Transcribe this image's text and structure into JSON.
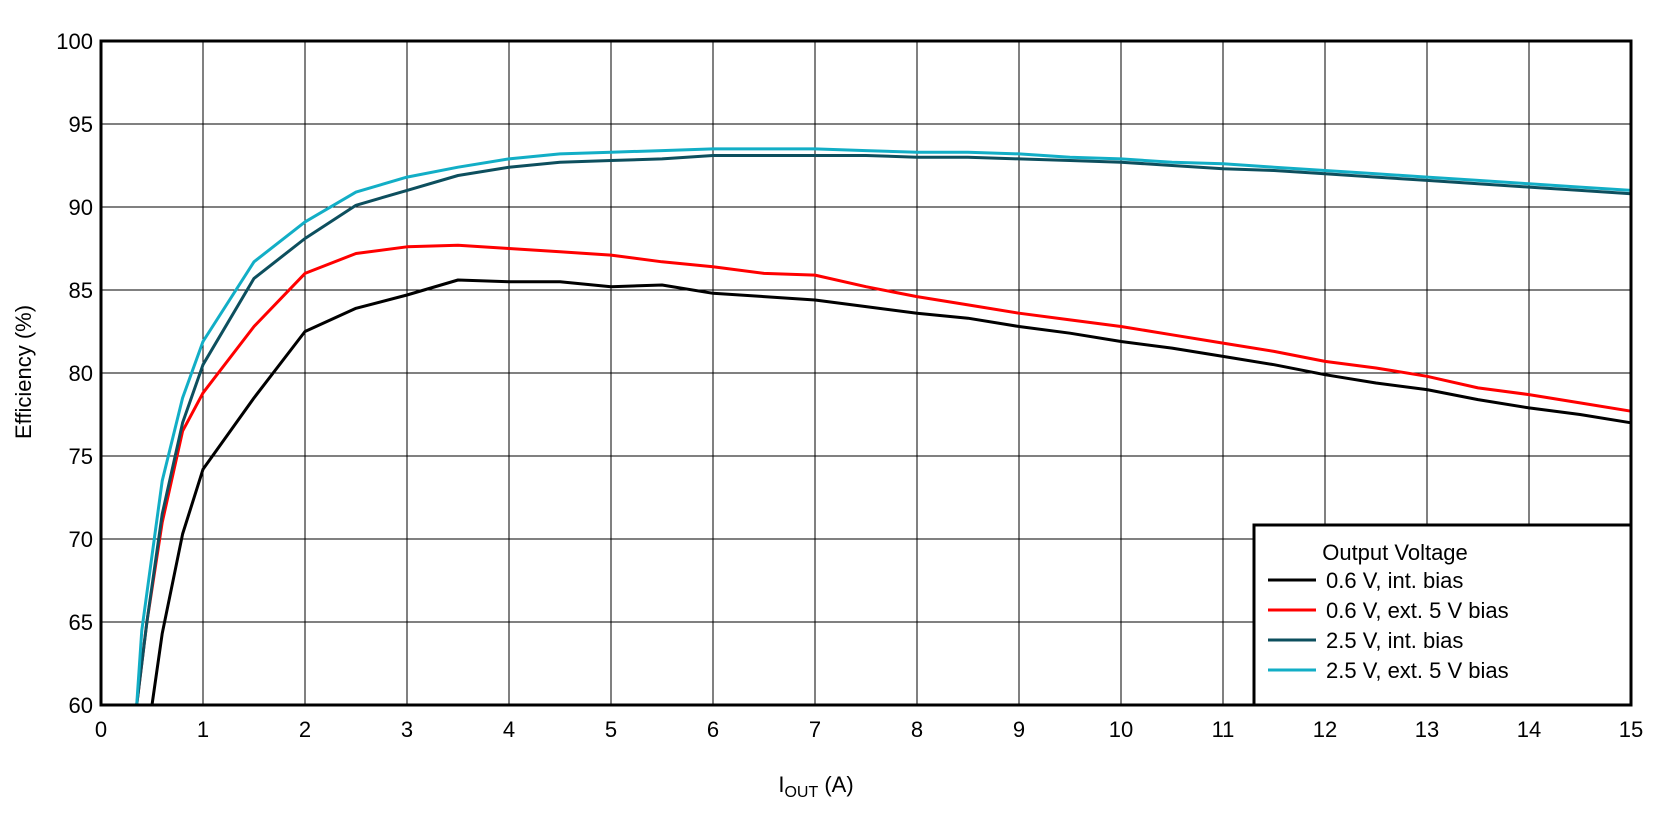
{
  "chart_data": {
    "type": "line",
    "xlabel_main": "I",
    "xlabel_sub": "OUT",
    "xlabel_unit": " (A)",
    "ylabel": "Efficiency (%)",
    "xlim": [
      0,
      15
    ],
    "ylim": [
      60,
      100
    ],
    "xticks": [
      0,
      1,
      2,
      3,
      4,
      5,
      6,
      7,
      8,
      9,
      10,
      11,
      12,
      13,
      14,
      15
    ],
    "yticks": [
      60,
      65,
      70,
      75,
      80,
      85,
      90,
      95,
      100
    ],
    "grid": true,
    "legend": {
      "title": "Output Voltage",
      "placement": "bottom-right"
    },
    "series": [
      {
        "name": "0.6 V, int. bias",
        "color": "#000000",
        "points": [
          [
            0.5,
            60
          ],
          [
            0.6,
            64.3
          ],
          [
            0.8,
            70.3
          ],
          [
            1,
            74.2
          ],
          [
            1.5,
            78.5
          ],
          [
            2,
            82.5
          ],
          [
            2.5,
            83.9
          ],
          [
            3,
            84.7
          ],
          [
            3.5,
            85.6
          ],
          [
            4,
            85.5
          ],
          [
            4.5,
            85.5
          ],
          [
            5,
            85.2
          ],
          [
            5.5,
            85.3
          ],
          [
            6,
            84.8
          ],
          [
            6.5,
            84.6
          ],
          [
            7,
            84.4
          ],
          [
            7.5,
            84.0
          ],
          [
            8,
            83.6
          ],
          [
            8.5,
            83.3
          ],
          [
            9,
            82.8
          ],
          [
            9.5,
            82.4
          ],
          [
            10,
            81.9
          ],
          [
            10.5,
            81.5
          ],
          [
            11,
            81.0
          ],
          [
            11.5,
            80.5
          ],
          [
            12,
            79.9
          ],
          [
            12.5,
            79.4
          ],
          [
            13,
            79.0
          ],
          [
            13.5,
            78.4
          ],
          [
            14,
            77.9
          ],
          [
            14.5,
            77.5
          ],
          [
            15,
            77.0
          ]
        ]
      },
      {
        "name": "0.6 V, ext. 5 V bias",
        "color": "#ff0000",
        "points": [
          [
            0.35,
            60
          ],
          [
            0.45,
            65
          ],
          [
            0.6,
            71
          ],
          [
            0.8,
            76.5
          ],
          [
            1,
            78.8
          ],
          [
            1.5,
            82.8
          ],
          [
            2,
            86.0
          ],
          [
            2.5,
            87.2
          ],
          [
            3,
            87.6
          ],
          [
            3.5,
            87.7
          ],
          [
            4,
            87.5
          ],
          [
            4.5,
            87.3
          ],
          [
            5,
            87.1
          ],
          [
            5.5,
            86.7
          ],
          [
            6,
            86.4
          ],
          [
            6.5,
            86.0
          ],
          [
            7,
            85.9
          ],
          [
            7.5,
            85.2
          ],
          [
            8,
            84.6
          ],
          [
            8.5,
            84.1
          ],
          [
            9,
            83.6
          ],
          [
            9.5,
            83.2
          ],
          [
            10,
            82.8
          ],
          [
            10.5,
            82.3
          ],
          [
            11,
            81.8
          ],
          [
            11.5,
            81.3
          ],
          [
            12,
            80.7
          ],
          [
            12.5,
            80.3
          ],
          [
            13,
            79.8
          ],
          [
            13.5,
            79.1
          ],
          [
            14,
            78.7
          ],
          [
            14.5,
            78.2
          ],
          [
            15,
            77.7
          ]
        ]
      },
      {
        "name": "2.5 V, int. bias",
        "color": "#0d4f5e",
        "points": [
          [
            0.35,
            60
          ],
          [
            0.45,
            65
          ],
          [
            0.6,
            71.5
          ],
          [
            0.8,
            77.0
          ],
          [
            1,
            80.5
          ],
          [
            1.5,
            85.7
          ],
          [
            2,
            88.1
          ],
          [
            2.5,
            90.1
          ],
          [
            3,
            91.0
          ],
          [
            3.5,
            91.9
          ],
          [
            4,
            92.4
          ],
          [
            4.5,
            92.7
          ],
          [
            5,
            92.8
          ],
          [
            5.5,
            92.9
          ],
          [
            6,
            93.1
          ],
          [
            6.5,
            93.1
          ],
          [
            7,
            93.1
          ],
          [
            7.5,
            93.1
          ],
          [
            8,
            93.0
          ],
          [
            8.5,
            93.0
          ],
          [
            9,
            92.9
          ],
          [
            9.5,
            92.8
          ],
          [
            10,
            92.7
          ],
          [
            10.5,
            92.5
          ],
          [
            11,
            92.3
          ],
          [
            11.5,
            92.2
          ],
          [
            12,
            92.0
          ],
          [
            12.5,
            91.8
          ],
          [
            13,
            91.6
          ],
          [
            13.5,
            91.4
          ],
          [
            14,
            91.2
          ],
          [
            14.5,
            91.0
          ],
          [
            15,
            90.8
          ]
        ]
      },
      {
        "name": "2.5 V, ext. 5 V bias",
        "color": "#12aec6",
        "points": [
          [
            0.35,
            60
          ],
          [
            0.4,
            64.5
          ],
          [
            0.6,
            73.5
          ],
          [
            0.8,
            78.5
          ],
          [
            1,
            81.9
          ],
          [
            1.5,
            86.7
          ],
          [
            2,
            89.1
          ],
          [
            2.5,
            90.9
          ],
          [
            3,
            91.8
          ],
          [
            3.5,
            92.4
          ],
          [
            4,
            92.9
          ],
          [
            4.5,
            93.2
          ],
          [
            5,
            93.3
          ],
          [
            5.5,
            93.4
          ],
          [
            6,
            93.5
          ],
          [
            6.5,
            93.5
          ],
          [
            7,
            93.5
          ],
          [
            7.5,
            93.4
          ],
          [
            8,
            93.3
          ],
          [
            8.5,
            93.3
          ],
          [
            9,
            93.2
          ],
          [
            9.5,
            93.0
          ],
          [
            10,
            92.9
          ],
          [
            10.5,
            92.7
          ],
          [
            11,
            92.6
          ],
          [
            11.5,
            92.4
          ],
          [
            12,
            92.2
          ],
          [
            12.5,
            92.0
          ],
          [
            13,
            91.8
          ],
          [
            13.5,
            91.6
          ],
          [
            14,
            91.4
          ],
          [
            14.5,
            91.2
          ],
          [
            15,
            91.0
          ]
        ]
      }
    ]
  }
}
